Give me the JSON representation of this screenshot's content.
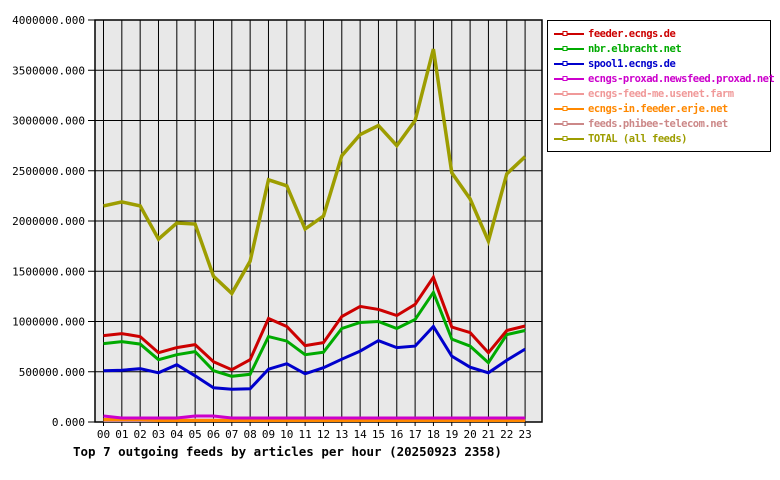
{
  "chart_data": {
    "type": "line",
    "title": "Top 7 outgoing feeds by articles per hour (20250923 2358)",
    "x": [
      "00",
      "01",
      "02",
      "03",
      "04",
      "05",
      "06",
      "07",
      "08",
      "09",
      "10",
      "11",
      "12",
      "13",
      "14",
      "15",
      "16",
      "17",
      "18",
      "19",
      "20",
      "21",
      "22",
      "23"
    ],
    "ylim": [
      0,
      4000000
    ],
    "ytick_step": 500000,
    "ytick_labels": [
      "0.000",
      "500000.000",
      "1000000.000",
      "1500000.000",
      "2000000.000",
      "2500000.000",
      "3000000.000",
      "3500000.000",
      "4000000.000"
    ],
    "grid": true,
    "legend_position": "outside-right-top",
    "series": [
      {
        "name": "feeder.ecngs.de",
        "color": "#cc0000",
        "values": [
          860000,
          880000,
          850000,
          690000,
          740000,
          770000,
          600000,
          520000,
          620000,
          1030000,
          950000,
          760000,
          790000,
          1050000,
          1150000,
          1120000,
          1060000,
          1170000,
          1440000,
          945000,
          890000,
          690000,
          910000,
          955000
        ]
      },
      {
        "name": "nbr.elbracht.net",
        "color": "#00aa00",
        "values": [
          780000,
          800000,
          775000,
          620000,
          670000,
          700000,
          510000,
          455000,
          475000,
          850000,
          805000,
          670000,
          695000,
          930000,
          990000,
          1000000,
          930000,
          1020000,
          1290000,
          825000,
          755000,
          590000,
          870000,
          910000
        ]
      },
      {
        "name": "spool1.ecngs.de",
        "color": "#0000cc",
        "values": [
          510000,
          515000,
          530000,
          490000,
          570000,
          460000,
          340000,
          325000,
          330000,
          525000,
          580000,
          480000,
          540000,
          625000,
          705000,
          810000,
          740000,
          755000,
          950000,
          655000,
          545000,
          490000,
          615000,
          725000
        ]
      },
      {
        "name": "ecngs-proxad.newsfeed.proxad.net",
        "color": "#cc00cc",
        "values": [
          60000,
          40000,
          40000,
          40000,
          40000,
          60000,
          60000,
          40000,
          40000,
          40000,
          40000,
          40000,
          40000,
          40000,
          40000,
          40000,
          40000,
          40000,
          40000,
          40000,
          40000,
          40000,
          40000,
          40000
        ]
      },
      {
        "name": "ecngs-feed-me.usenet.farm",
        "color": "#f09999",
        "values": [
          20000,
          20000,
          20000,
          20000,
          20000,
          20000,
          20000,
          20000,
          20000,
          20000,
          20000,
          20000,
          20000,
          20000,
          20000,
          20000,
          20000,
          20000,
          20000,
          20000,
          20000,
          20000,
          20000,
          20000
        ]
      },
      {
        "name": "ecngs-in.feeder.erje.net",
        "color": "#ff8800",
        "values": [
          25000,
          25000,
          25000,
          15000,
          15000,
          15000,
          15000,
          15000,
          15000,
          15000,
          15000,
          15000,
          15000,
          15000,
          15000,
          15000,
          15000,
          15000,
          15000,
          15000,
          15000,
          15000,
          15000,
          15000
        ]
      },
      {
        "name": "feeds.phibee-telecom.net",
        "color": "#cc8888",
        "values": [
          15000,
          15000,
          15000,
          15000,
          15000,
          15000,
          15000,
          15000,
          15000,
          15000,
          15000,
          15000,
          15000,
          15000,
          15000,
          15000,
          15000,
          15000,
          15000,
          15000,
          15000,
          15000,
          15000,
          15000
        ]
      },
      {
        "name": "TOTAL (all feeds)",
        "color": "#9d9d00",
        "values": [
          2150000,
          2190000,
          2150000,
          1820000,
          1980000,
          1970000,
          1450000,
          1280000,
          1600000,
          2410000,
          2350000,
          1920000,
          2050000,
          2650000,
          2860000,
          2950000,
          2750000,
          3000000,
          3710000,
          2480000,
          2220000,
          1800000,
          2470000,
          2640000
        ]
      }
    ],
    "colors": {
      "plot_background": "#e8e8e8",
      "grid": "#000000",
      "axis_text": "#000000",
      "title_text": "#000000",
      "legend_background": "#ffffff",
      "legend_border": "#000000"
    }
  }
}
